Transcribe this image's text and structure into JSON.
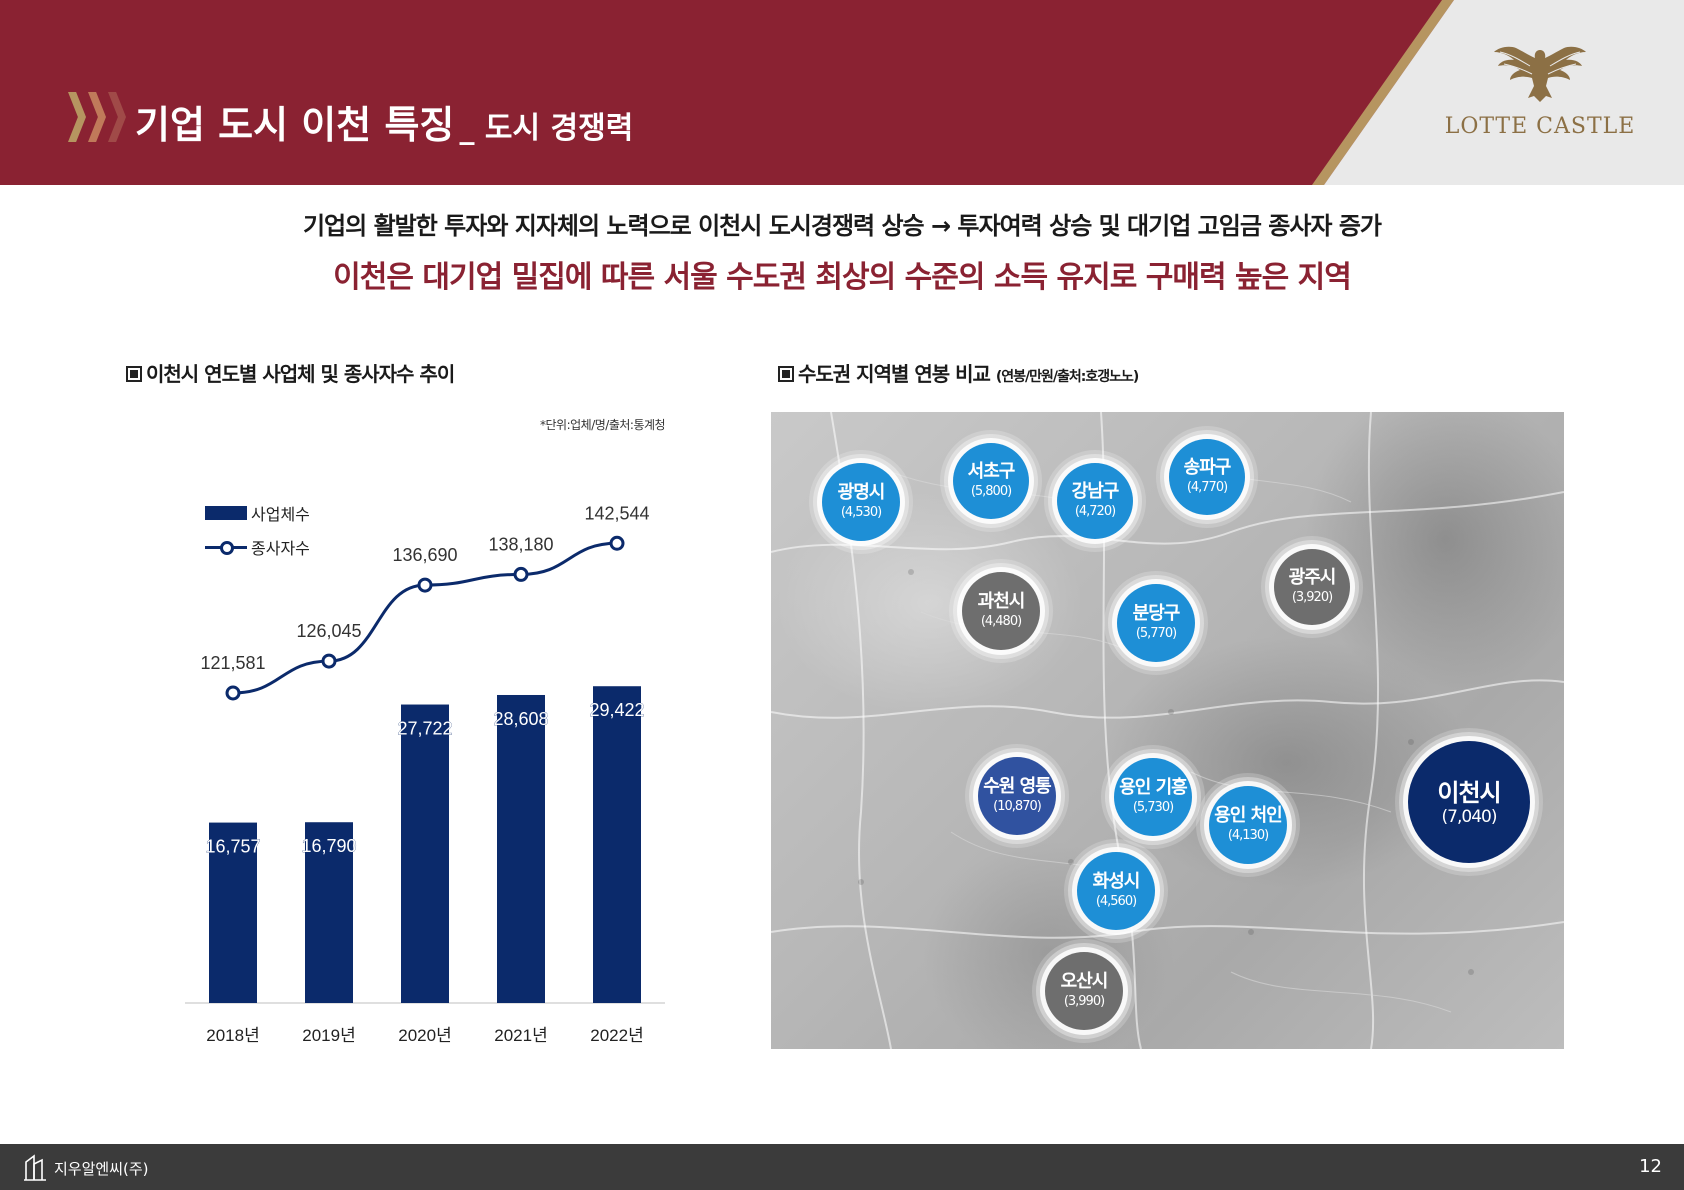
{
  "header": {
    "title_main": "기업 도시 이천 특징",
    "title_sub": "_ 도시 경쟁력",
    "brand": "LOTTE CASTLE"
  },
  "headline": {
    "line1": "기업의 활발한 투자와 지자체의 노력으로 이천시 도시경쟁력 상승 → 투자여력 상승 및 대기업 고임금 종사자 증가",
    "line2": "이천은 대기업 밀집에 따른 서울 수도권 최상의 수준의 소득 유지로 구매력 높은 지역"
  },
  "left_section": {
    "title": "이천시 연도별 사업체 및 종사자수 추이",
    "note": "*단위:업체/명/출처:통계청"
  },
  "right_section": {
    "title": "수도권 지역별 연봉 비교",
    "title_suffix": "(연봉/만원/출처:호갱노노)"
  },
  "colors": {
    "header_bg": "#8a2232",
    "gold": "#b69560",
    "navy": "#0b2a6b",
    "blue": "#1e8fd6",
    "gray": "#6e6e6e"
  },
  "chart_data": {
    "type": "bar",
    "categories": [
      "2018년",
      "2019년",
      "2020년",
      "2021년",
      "2022년"
    ],
    "series": [
      {
        "name": "사업체수",
        "type": "bar",
        "values": [
          16757,
          16790,
          27722,
          28608,
          29422
        ],
        "labels": [
          "16,757",
          "16,790",
          "27,722",
          "28,608",
          "29,422"
        ]
      },
      {
        "name": "종사자수",
        "type": "line",
        "values": [
          121581,
          126045,
          136690,
          138180,
          142544
        ],
        "labels": [
          "121,581",
          "126,045",
          "136,690",
          "138,180",
          "142,544"
        ]
      }
    ],
    "legend": "top-left",
    "grid": false
  },
  "map": {
    "cities": [
      {
        "name": "광명시",
        "value": "(4,530)",
        "style": "blue"
      },
      {
        "name": "서초구",
        "value": "(5,800)",
        "style": "blue"
      },
      {
        "name": "강남구",
        "value": "(4,720)",
        "style": "blue"
      },
      {
        "name": "송파구",
        "value": "(4,770)",
        "style": "blue"
      },
      {
        "name": "과천시",
        "value": "(4,480)",
        "style": "gray"
      },
      {
        "name": "분당구",
        "value": "(5,770)",
        "style": "blue"
      },
      {
        "name": "광주시",
        "value": "(3,920)",
        "style": "gray"
      },
      {
        "name": "수원 영통",
        "value": "(10,870)",
        "style": "mid"
      },
      {
        "name": "용인 기흥",
        "value": "(5,730)",
        "style": "blue"
      },
      {
        "name": "용인 처인",
        "value": "(4,130)",
        "style": "blue"
      },
      {
        "name": "이천시",
        "value": "(7,040)",
        "style": "navy"
      },
      {
        "name": "화성시",
        "value": "(4,560)",
        "style": "blue"
      },
      {
        "name": "오산시",
        "value": "(3,990)",
        "style": "gray"
      }
    ]
  },
  "footer": {
    "company": "지우알엔씨(주)",
    "page": "12"
  }
}
